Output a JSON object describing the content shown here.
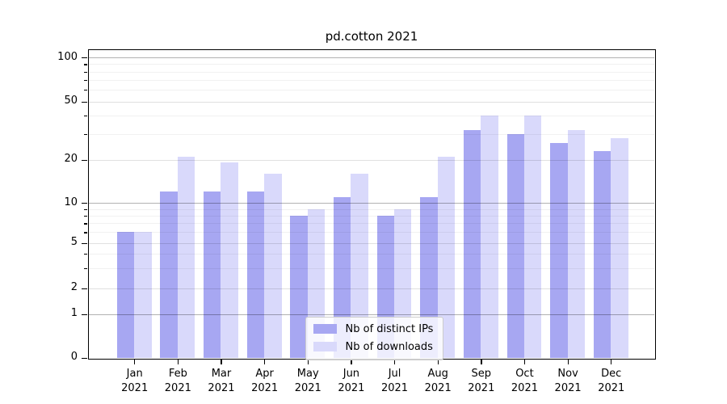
{
  "title": "pd.cotton 2021",
  "chart_data": {
    "type": "bar",
    "title": "pd.cotton 2021",
    "year": "2021",
    "months": [
      "Jan",
      "Feb",
      "Mar",
      "Apr",
      "May",
      "Jun",
      "Jul",
      "Aug",
      "Sep",
      "Oct",
      "Nov",
      "Dec"
    ],
    "categories": [
      "Jan 2021",
      "Feb 2021",
      "Mar 2021",
      "Apr 2021",
      "May 2021",
      "Jun 2021",
      "Jul 2021",
      "Aug 2021",
      "Sep 2021",
      "Oct 2021",
      "Nov 2021",
      "Dec 2021"
    ],
    "series": [
      {
        "name": "Nb of distinct IPs",
        "color": "#a7a7f2",
        "values": [
          6,
          12,
          12,
          12,
          8,
          11,
          8,
          11,
          32,
          30,
          26,
          23
        ]
      },
      {
        "name": "Nb of downloads",
        "color": "#d9d9fb",
        "values": [
          6,
          21,
          19,
          16,
          9,
          16,
          9,
          21,
          40,
          40,
          32,
          28
        ]
      }
    ],
    "yscale": "symlog",
    "ylim": [
      0,
      112
    ],
    "y_major_ticks": [
      0,
      1,
      2,
      5,
      10,
      20,
      50,
      100
    ],
    "y_major_tick_labels": [
      "0",
      "1",
      "2",
      "5",
      "10",
      "20",
      "50",
      "100"
    ],
    "y_minor_ticks": [
      3,
      4,
      6,
      7,
      8,
      9,
      30,
      40,
      60,
      70,
      80,
      90
    ],
    "grid": true,
    "legend_position": "lower center",
    "xlabel": "",
    "ylabel": ""
  },
  "legend": {
    "items": [
      {
        "label": "Nb of distinct IPs",
        "color": "#a7a7f2"
      },
      {
        "label": "Nb of downloads",
        "color": "#d9d9fb"
      }
    ]
  }
}
